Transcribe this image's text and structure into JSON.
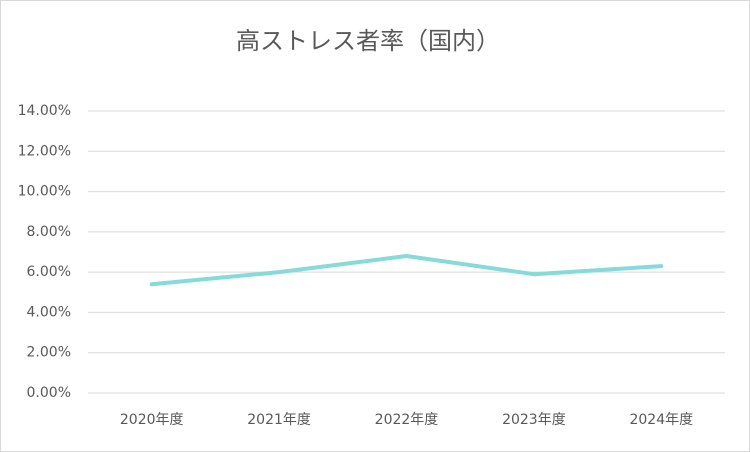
{
  "chart_data": {
    "type": "line",
    "title": "高ストレス者率（国内）",
    "categories": [
      "2020年度",
      "2021年度",
      "2022年度",
      "2023年度",
      "2024年度"
    ],
    "values": [
      5.4,
      6.0,
      6.8,
      5.9,
      6.3
    ],
    "color": "#86dada",
    "ylim": [
      0,
      14
    ],
    "yticks": [
      {
        "value": 0,
        "label": "0.00%"
      },
      {
        "value": 2,
        "label": "2.00%"
      },
      {
        "value": 4,
        "label": "4.00%"
      },
      {
        "value": 6,
        "label": "6.00%"
      },
      {
        "value": 8,
        "label": "8.00%"
      },
      {
        "value": 10,
        "label": "10.00%"
      },
      {
        "value": 12,
        "label": "12.00%"
      },
      {
        "value": 14,
        "label": "14.00%"
      }
    ],
    "grid": true
  }
}
